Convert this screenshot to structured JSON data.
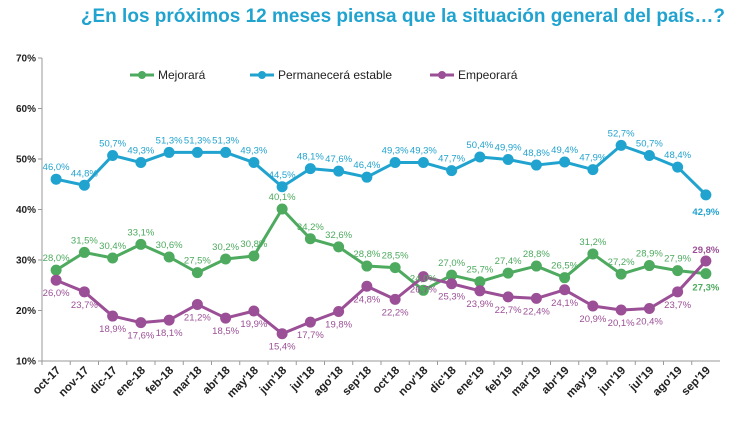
{
  "chart_data": {
    "type": "line",
    "title": "¿En los próximos 12 meses piensa que la situación general del país…?",
    "categories": [
      "oct-17",
      "nov-17",
      "dic-17",
      "ene-18",
      "feb-18",
      "mar'18",
      "abr'18",
      "may'18",
      "jun'18",
      "jul'18",
      "ago'18",
      "sep'18",
      "oct'18",
      "nov'18",
      "dic'18",
      "ene'19",
      "feb'19",
      "mar'19",
      "abr'19",
      "may'19",
      "jun'19",
      "jul'19",
      "ago'19",
      "sep'19"
    ],
    "ylim": [
      10,
      70
    ],
    "yticks": [
      "10%",
      "20%",
      "30%",
      "40%",
      "50%",
      "60%",
      "70%"
    ],
    "grid": false,
    "legend_position": "top",
    "series": [
      {
        "name": "Mejorará",
        "color": "#4DAA5E",
        "values": [
          28.0,
          31.5,
          30.4,
          33.1,
          30.6,
          27.5,
          30.2,
          30.8,
          40.1,
          34.2,
          32.6,
          28.8,
          28.5,
          24.0,
          27.0,
          25.7,
          27.4,
          28.8,
          26.5,
          31.2,
          27.2,
          28.9,
          27.9,
          27.3
        ],
        "labels": [
          "28,0%",
          "31,5%",
          "30,4%",
          "33,1%",
          "30,6%",
          "27,5%",
          "30,2%",
          "30,8%",
          "40,1%",
          "34,2%",
          "32,6%",
          "28,8%",
          "28,5%",
          "24,0%",
          "27,0%",
          "25,7%",
          "27,4%",
          "28,8%",
          "26,5%",
          "31,2%",
          "27,2%",
          "28,9%",
          "27,9%",
          "27,3%"
        ]
      },
      {
        "name": "Permanecerá estable",
        "color": "#21A3CF",
        "values": [
          46.0,
          44.8,
          50.7,
          49.3,
          51.3,
          51.3,
          51.3,
          49.3,
          44.5,
          48.1,
          47.6,
          46.4,
          49.3,
          49.3,
          47.7,
          50.4,
          49.9,
          48.8,
          49.4,
          47.9,
          52.7,
          50.7,
          48.4,
          42.9
        ],
        "labels": [
          "46,0%",
          "44,8%",
          "50,7%",
          "49,3%",
          "51,3%",
          "51,3%",
          "51,3%",
          "49,3%",
          "44,5%",
          "48,1%",
          "47,6%",
          "46,4%",
          "49,3%",
          "49,3%",
          "47,7%",
          "50,4%",
          "49,9%",
          "48,8%",
          "49,4%",
          "47,9%",
          "52,7%",
          "50,7%",
          "48,4%",
          "42,9%"
        ]
      },
      {
        "name": "Empeorará",
        "color": "#9B4F96",
        "values": [
          26.0,
          23.7,
          18.9,
          17.6,
          18.1,
          21.2,
          18.5,
          19.9,
          15.4,
          17.7,
          19.8,
          24.8,
          22.2,
          26.7,
          25.3,
          23.9,
          22.7,
          22.4,
          24.1,
          20.9,
          20.1,
          20.4,
          23.7,
          29.8
        ],
        "labels": [
          "26,0%",
          "23,7%",
          "18,9%",
          "17,6%",
          "18,1%",
          "21,2%",
          "18,5%",
          "19,9%",
          "15,4%",
          "17,7%",
          "19,8%",
          "24,8%",
          "22,2%",
          "26,7%",
          "25,3%",
          "23,9%",
          "22,7%",
          "22,4%",
          "24,1%",
          "20,9%",
          "20,1%",
          "20,4%",
          "23,7%",
          "29,8%"
        ]
      }
    ]
  }
}
